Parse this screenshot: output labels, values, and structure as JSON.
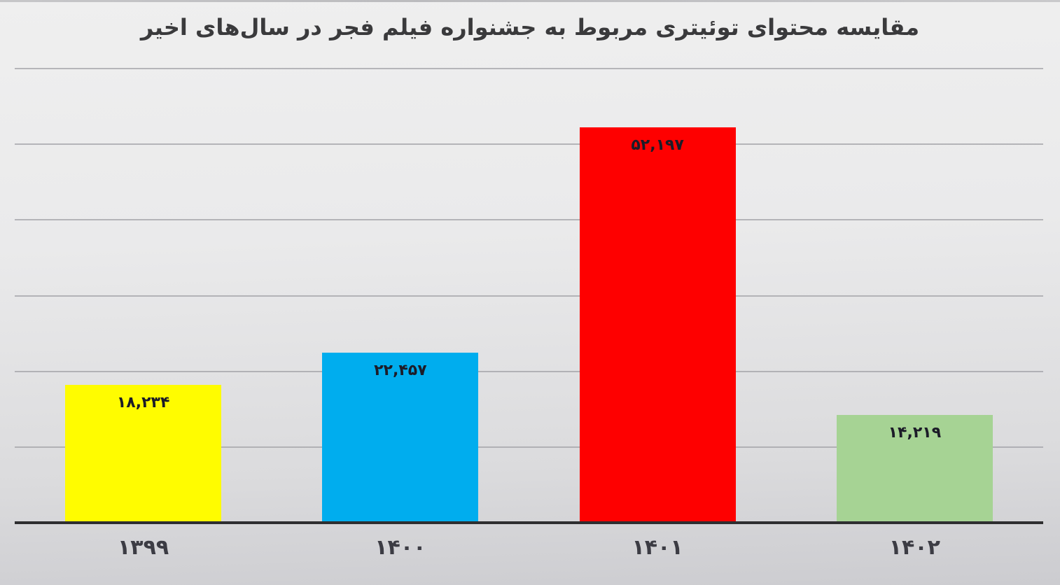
{
  "chart_data": {
    "type": "bar",
    "title": "مقایسه محتوای توئیتری مربوط به جشنواره فیلم فجر در سال‌های اخیر",
    "categories": [
      "۱۳۹۹",
      "۱۴۰۰",
      "۱۴۰۱",
      "۱۴۰۲"
    ],
    "categories_numeric": [
      1399,
      1400,
      1401,
      1402
    ],
    "values": [
      18234,
      22457,
      52197,
      14219
    ],
    "value_labels": [
      "۱۸,۲۳۴",
      "۲۲,۴۵۷",
      "۵۲,۱۹۷",
      "۱۴,۲۱۹"
    ],
    "bar_colors": [
      "#FFFC00",
      "#00ADEE",
      "#FE0000",
      "#A6D394"
    ],
    "xlabel": "",
    "ylabel": "",
    "ylim": [
      0,
      60000
    ],
    "gridline_interval": 10000,
    "grid": "horizontal-only",
    "legend": "none",
    "y_tick_labels_visible": false
  },
  "colors": {
    "background_top": "#EFEFEF",
    "background_bottom": "#CCCCD0",
    "gridline": "#A2A2A7",
    "axis_line": "#2E2E30",
    "title_text": "#3A3A3C",
    "bar_label_text": "#1C1C28",
    "category_label_text": "#3C3C44"
  }
}
